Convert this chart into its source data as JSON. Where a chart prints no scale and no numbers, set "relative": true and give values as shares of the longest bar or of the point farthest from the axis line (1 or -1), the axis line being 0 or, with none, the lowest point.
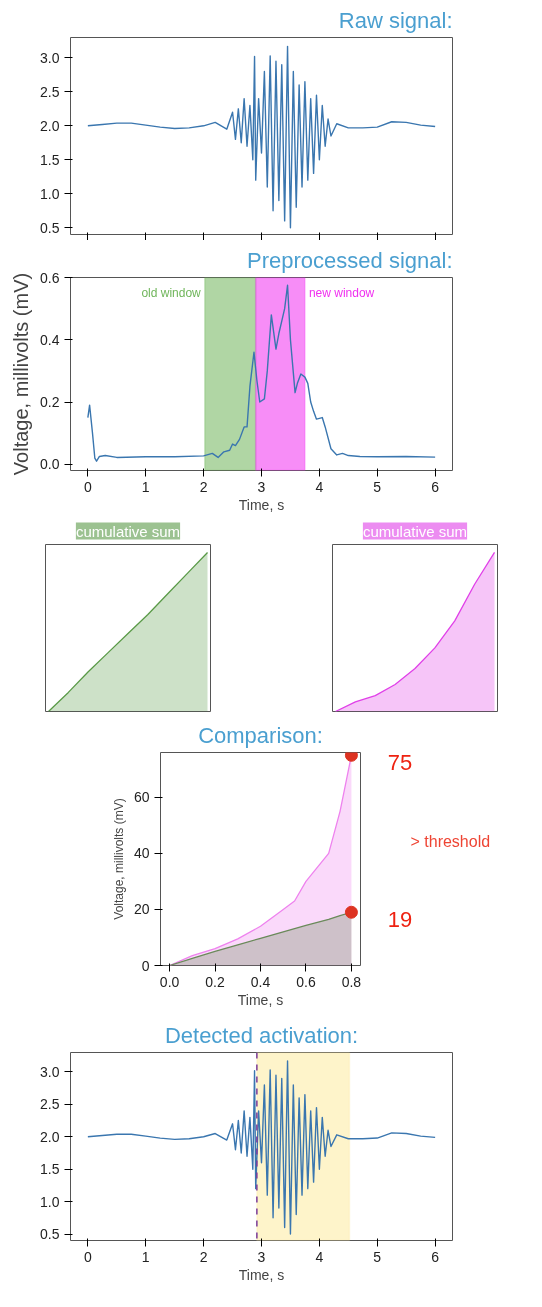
{
  "chart_data": [
    {
      "type": "line",
      "title": "Raw signal:",
      "color": "#3a76af",
      "tick_labels": "y",
      "x": [
        0,
        0.25,
        0.5,
        0.75,
        1.0,
        1.25,
        1.5,
        1.75,
        2.0,
        2.2,
        2.4,
        2.5,
        2.55,
        2.6,
        2.65,
        2.7,
        2.75,
        2.8,
        2.85,
        2.88,
        2.9,
        2.95,
        3.0,
        3.05,
        3.1,
        3.15,
        3.2,
        3.25,
        3.3,
        3.35,
        3.4,
        3.45,
        3.5,
        3.55,
        3.6,
        3.65,
        3.7,
        3.75,
        3.8,
        3.85,
        3.9,
        3.95,
        4.0,
        4.05,
        4.1,
        4.15,
        4.2,
        4.3,
        4.5,
        4.75,
        5.0,
        5.25,
        5.5,
        5.75,
        6.0
      ],
      "values": [
        2.0,
        2.02,
        2.04,
        2.04,
        2.01,
        1.98,
        1.96,
        1.97,
        2.0,
        2.05,
        1.95,
        2.2,
        1.8,
        2.25,
        1.75,
        2.4,
        1.7,
        2.3,
        1.5,
        3.02,
        1.2,
        2.4,
        1.6,
        2.8,
        1.1,
        3.03,
        0.75,
        2.95,
        0.9,
        2.9,
        0.6,
        3.17,
        0.5,
        2.8,
        0.8,
        2.6,
        1.1,
        2.65,
        1.2,
        2.4,
        1.3,
        2.45,
        1.5,
        2.3,
        1.7,
        2.1,
        1.85,
        2.03,
        1.97,
        1.97,
        1.98,
        2.06,
        2.05,
        2.01,
        1.99
      ],
      "xlim": [
        -0.3,
        6.3
      ],
      "ylim": [
        0.4,
        3.3
      ],
      "xticks": [
        0,
        1,
        2,
        3,
        4,
        5,
        6
      ],
      "yticks": [
        0.5,
        {
          "value": 1,
          "label": "1.0"
        },
        1.5,
        {
          "value": 2,
          "label": "2.0"
        },
        2.5,
        {
          "value": 3,
          "label": "3.0"
        }
      ]
    },
    {
      "type": "line",
      "title": "Preprocessed signal:",
      "color": "#3a76af",
      "xlabel": "Time, s",
      "ylabel": "Voltage, millivolts (mV)",
      "x": [
        0,
        0.03,
        0.08,
        0.12,
        0.15,
        0.2,
        0.3,
        0.5,
        1.0,
        1.5,
        2.0,
        2.15,
        2.25,
        2.35,
        2.45,
        2.5,
        2.55,
        2.62,
        2.7,
        2.75,
        2.8,
        2.87,
        2.92,
        2.97,
        3.05,
        3.1,
        3.17,
        3.25,
        3.3,
        3.35,
        3.4,
        3.45,
        3.5,
        3.58,
        3.62,
        3.68,
        3.75,
        3.8,
        3.85,
        3.9,
        3.95,
        4.05,
        4.1,
        4.2,
        4.3,
        4.4,
        4.5,
        4.7,
        5.0,
        5.5,
        6.0
      ],
      "values": [
        0.15,
        0.19,
        0.1,
        0.02,
        0.01,
        0.025,
        0.028,
        0.022,
        0.024,
        0.024,
        0.027,
        0.035,
        0.022,
        0.04,
        0.045,
        0.065,
        0.06,
        0.08,
        0.12,
        0.12,
        0.25,
        0.36,
        0.27,
        0.2,
        0.21,
        0.3,
        0.48,
        0.37,
        0.42,
        0.46,
        0.5,
        0.575,
        0.4,
        0.23,
        0.26,
        0.29,
        0.28,
        0.26,
        0.2,
        0.17,
        0.145,
        0.15,
        0.12,
        0.05,
        0.03,
        0.035,
        0.028,
        0.025,
        0.024,
        0.025,
        0.023
      ],
      "xlim": [
        -0.3,
        6.3
      ],
      "ylim": [
        -0.02,
        0.6
      ],
      "xticks": [
        0,
        1,
        2,
        3,
        4,
        5,
        6
      ],
      "yticks": [
        {
          "value": 0,
          "label": "0.0"
        },
        0.2,
        0.4,
        0.6
      ],
      "bands": [
        {
          "axis": "x",
          "from": 2.02,
          "to": 2.9,
          "label": "old window",
          "color": "#6fb55a"
        },
        {
          "axis": "x",
          "from": 2.9,
          "to": 3.75,
          "label": "new window",
          "color": "#f030f0"
        }
      ]
    },
    {
      "type": "area",
      "title": "cumulative sum",
      "relative": true,
      "color": "#5a9a48",
      "categories": [
        null,
        null,
        null,
        null,
        null,
        null,
        null,
        null,
        null
      ],
      "values": [
        0,
        0.12,
        0.25,
        0.37,
        0.49,
        0.61,
        0.74,
        0.87,
        1.0
      ]
    },
    {
      "type": "area",
      "title": "cumulative sum",
      "relative": true,
      "color": "#e040e8",
      "categories": [
        null,
        null,
        null,
        null,
        null,
        null,
        null,
        null,
        null
      ],
      "values": [
        0,
        0.06,
        0.1,
        0.17,
        0.27,
        0.4,
        0.57,
        0.8,
        1.0
      ]
    },
    {
      "type": "area",
      "title": "Comparison:",
      "xlabel": "Time, s",
      "ylabel": "Voltage, millivolts (mV)",
      "x": [
        0,
        0.1,
        0.2,
        0.3,
        0.4,
        0.5,
        0.55,
        0.6,
        0.7,
        0.75,
        0.8
      ],
      "series": [
        {
          "color": "#ee82ee",
          "values": [
            0,
            3.5,
            6,
            9.5,
            14,
            20,
            23,
            30,
            40,
            55,
            75
          ],
          "value_labels": [
            null,
            null,
            null,
            null,
            null,
            null,
            null,
            null,
            null,
            null,
            "75"
          ]
        },
        {
          "color": "#6a8a5a",
          "values": [
            0,
            2.5,
            5,
            7.4,
            9.7,
            12,
            13.2,
            14.3,
            16.5,
            17.8,
            19
          ],
          "value_labels": [
            null,
            null,
            null,
            null,
            null,
            null,
            null,
            null,
            null,
            null,
            "19"
          ]
        }
      ],
      "xlim": [
        -0.04,
        0.84
      ],
      "ylim": [
        0,
        76
      ],
      "xticks": [
        {
          "value": 0,
          "label": "0.0"
        },
        0.2,
        0.4,
        0.6,
        0.8
      ],
      "yticks": [
        0,
        20,
        40,
        60
      ],
      "annotations": [
        "> threshold"
      ]
    },
    {
      "type": "line",
      "title": "Detected activation:",
      "color": "#3a76af",
      "xlabel": "Time, s",
      "x": [
        0,
        0.25,
        0.5,
        0.75,
        1.0,
        1.25,
        1.5,
        1.75,
        2.0,
        2.2,
        2.4,
        2.5,
        2.55,
        2.6,
        2.65,
        2.7,
        2.75,
        2.8,
        2.85,
        2.88,
        2.9,
        2.95,
        3.0,
        3.05,
        3.1,
        3.15,
        3.2,
        3.25,
        3.3,
        3.35,
        3.4,
        3.45,
        3.5,
        3.55,
        3.6,
        3.65,
        3.7,
        3.75,
        3.8,
        3.85,
        3.9,
        3.95,
        4.0,
        4.05,
        4.1,
        4.15,
        4.2,
        4.3,
        4.5,
        4.75,
        5.0,
        5.25,
        5.5,
        5.75,
        6.0
      ],
      "values": [
        2.0,
        2.02,
        2.04,
        2.04,
        2.01,
        1.98,
        1.96,
        1.97,
        2.0,
        2.05,
        1.95,
        2.2,
        1.8,
        2.25,
        1.75,
        2.4,
        1.7,
        2.3,
        1.5,
        3.02,
        1.2,
        2.4,
        1.6,
        2.8,
        1.1,
        3.03,
        0.75,
        2.95,
        0.9,
        2.9,
        0.6,
        3.17,
        0.5,
        2.8,
        0.8,
        2.6,
        1.1,
        2.65,
        1.2,
        2.4,
        1.3,
        2.45,
        1.5,
        2.3,
        1.7,
        2.1,
        1.85,
        2.03,
        1.97,
        1.97,
        1.98,
        2.06,
        2.05,
        2.01,
        1.99
      ],
      "xlim": [
        -0.3,
        6.3
      ],
      "ylim": [
        0.4,
        3.3
      ],
      "xticks": [
        0,
        1,
        2,
        3,
        4,
        5,
        6
      ],
      "yticks": [
        0.5,
        {
          "value": 1,
          "label": "1.0"
        },
        1.5,
        {
          "value": 2,
          "label": "2.0"
        },
        2.5,
        {
          "value": 3,
          "label": "3.0"
        }
      ],
      "bands": [
        {
          "axis": "x",
          "from": 2.92,
          "to": 4.52,
          "color": "#fdeb9e"
        }
      ],
      "ref_lines": [
        {
          "axis": "x",
          "value": 2.92,
          "color": "#7a3a9a",
          "line_style": "dashed"
        }
      ]
    }
  ]
}
